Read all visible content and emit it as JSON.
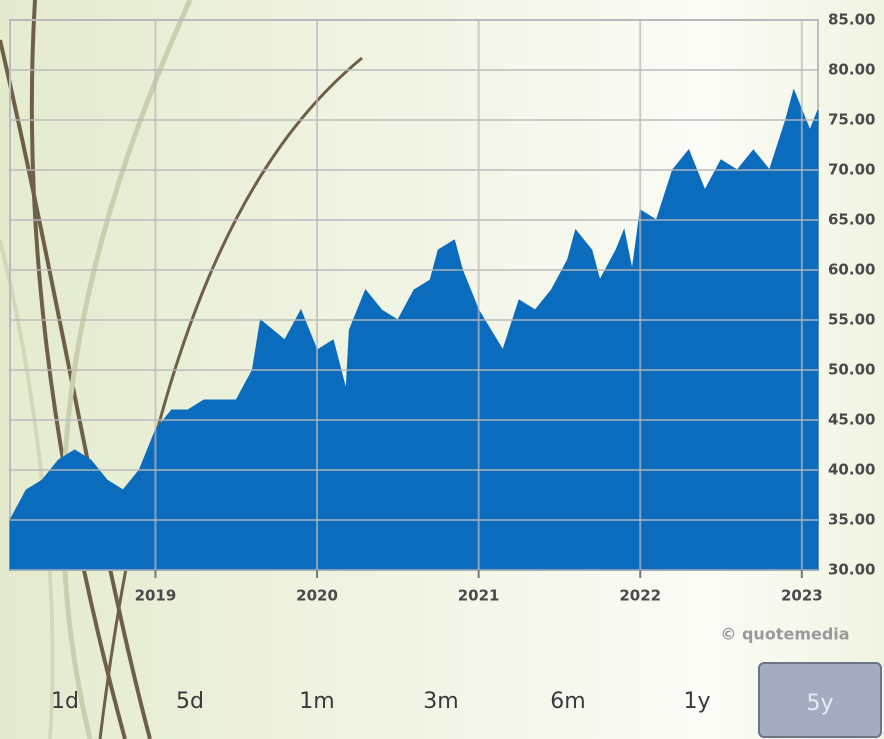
{
  "chart_data": {
    "type": "area",
    "color": "#0b6cbd",
    "grid": true,
    "x": [
      2018.1,
      2018.2,
      2018.3,
      2018.4,
      2018.5,
      2018.6,
      2018.7,
      2018.8,
      2018.9,
      2019.0,
      2019.1,
      2019.2,
      2019.3,
      2019.4,
      2019.5,
      2019.6,
      2019.65,
      2019.8,
      2019.9,
      2020.0,
      2020.1,
      2020.18,
      2020.2,
      2020.3,
      2020.4,
      2020.5,
      2020.6,
      2020.7,
      2020.75,
      2020.85,
      2020.9,
      2021.0,
      2021.15,
      2021.25,
      2021.35,
      2021.45,
      2021.55,
      2021.6,
      2021.7,
      2021.75,
      2021.85,
      2021.9,
      2021.95,
      2022.0,
      2022.1,
      2022.2,
      2022.3,
      2022.4,
      2022.5,
      2022.6,
      2022.7,
      2022.8,
      2022.9,
      2022.95,
      2023.0,
      2023.05,
      2023.1
    ],
    "values": [
      35,
      38,
      39,
      41,
      42,
      41,
      39,
      38,
      40,
      44,
      46,
      46,
      47,
      47,
      47,
      50,
      55,
      53,
      56,
      52,
      53,
      48,
      54,
      58,
      56,
      55,
      58,
      59,
      62,
      63,
      60,
      56,
      52,
      57,
      56,
      58,
      61,
      64,
      62,
      59,
      62,
      64,
      60,
      66,
      65,
      70,
      72,
      68,
      71,
      70,
      72,
      70,
      75,
      78,
      76,
      74,
      76
    ],
    "xlim": [
      2018.1,
      2023.1
    ],
    "xticks": [
      2019,
      2020,
      2021,
      2022,
      2023
    ],
    "ylim": [
      30,
      85
    ],
    "yticks": [
      {
        "value": 30,
        "label": "30.00"
      },
      {
        "value": 35,
        "label": "35.00"
      },
      {
        "value": 40,
        "label": "40.00"
      },
      {
        "value": 45,
        "label": "45.00"
      },
      {
        "value": 50,
        "label": "50.00"
      },
      {
        "value": 55,
        "label": "55.00"
      },
      {
        "value": 60,
        "label": "60.00"
      },
      {
        "value": 65,
        "label": "65.00"
      },
      {
        "value": 70,
        "label": "70.00"
      },
      {
        "value": 75,
        "label": "75.00"
      },
      {
        "value": 80,
        "label": "80.00"
      },
      {
        "value": 85,
        "label": "85.00"
      }
    ],
    "watermark": "© quotemedia",
    "buttons": [
      "1d",
      "5d",
      "1m",
      "3m",
      "6m",
      "1y",
      "5y"
    ],
    "selected": 6
  }
}
